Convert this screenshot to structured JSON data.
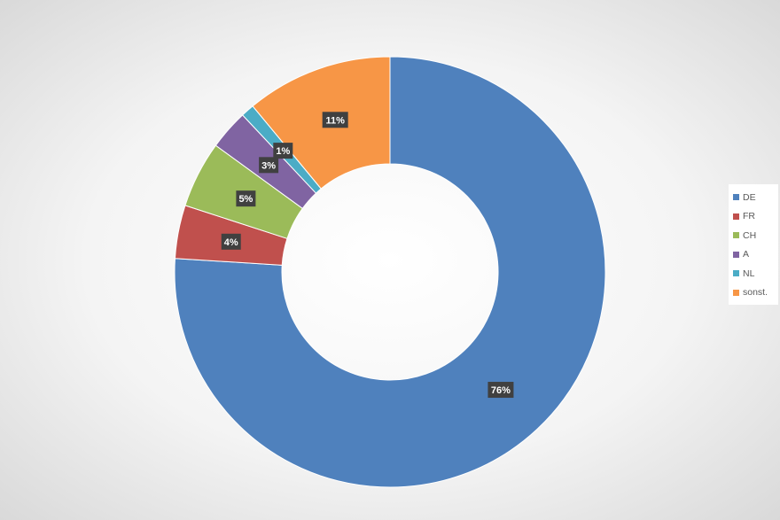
{
  "chart_data": {
    "type": "donut",
    "series": [
      {
        "name": "DE",
        "value": 76,
        "label": "76%",
        "color": "#4F81BD"
      },
      {
        "name": "FR",
        "value": 4,
        "label": "4%",
        "color": "#C0504D"
      },
      {
        "name": "CH",
        "value": 5,
        "label": "5%",
        "color": "#9BBB59"
      },
      {
        "name": "A",
        "value": 3,
        "label": "3%",
        "color": "#8064A2"
      },
      {
        "name": "NL",
        "value": 1,
        "label": "1%",
        "color": "#4BACC6"
      },
      {
        "name": "sonst.",
        "value": 11,
        "label": "11%",
        "color": "#F79646"
      }
    ],
    "legend_position": "right",
    "data_label_style": "dark box, white bold text"
  }
}
